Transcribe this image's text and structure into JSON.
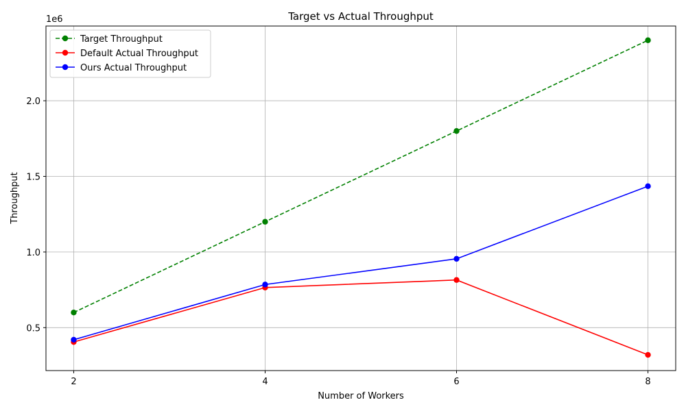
{
  "chart_data": {
    "type": "line",
    "title": "Target vs Actual Throughput",
    "xlabel": "Number of Workers",
    "ylabel": "Throughput",
    "y_offset_label": "1e6",
    "x": [
      2,
      4,
      6,
      8
    ],
    "x_ticks": [
      "2",
      "4",
      "6",
      "8"
    ],
    "y_ticks": [
      "0.5",
      "1.0",
      "1.5",
      "2.0"
    ],
    "xlim": [
      1.71,
      8.29
    ],
    "ylim": [
      0.216,
      2.494
    ],
    "grid": true,
    "legend_position": "upper-left",
    "series": [
      {
        "name": "Target Throughput",
        "values": [
          0.6,
          1.2,
          1.8,
          2.4
        ],
        "color": "#008000",
        "dashed": true
      },
      {
        "name": "Default Actual Throughput",
        "values": [
          0.405,
          0.765,
          0.815,
          0.32
        ],
        "color": "#ff0000",
        "dashed": false
      },
      {
        "name": "Ours Actual Throughput",
        "values": [
          0.42,
          0.785,
          0.955,
          1.435
        ],
        "color": "#0000ff",
        "dashed": false
      }
    ]
  }
}
